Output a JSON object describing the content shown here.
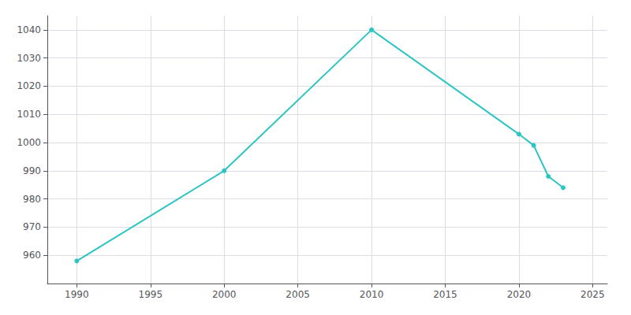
{
  "chart_data": {
    "type": "line",
    "x": [
      1990,
      2000,
      2010,
      2020,
      2021,
      2022,
      2023
    ],
    "values": [
      958,
      990,
      1040,
      1003,
      999,
      988,
      984
    ],
    "color": "#2EC4C4",
    "marker": "circle",
    "xlim": [
      1988,
      2026
    ],
    "ylim": [
      950,
      1045
    ],
    "xticks": [
      1990,
      1995,
      2000,
      2005,
      2010,
      2015,
      2020,
      2025
    ],
    "yticks": [
      960,
      970,
      980,
      990,
      1000,
      1010,
      1020,
      1030,
      1040
    ],
    "grid": true
  }
}
